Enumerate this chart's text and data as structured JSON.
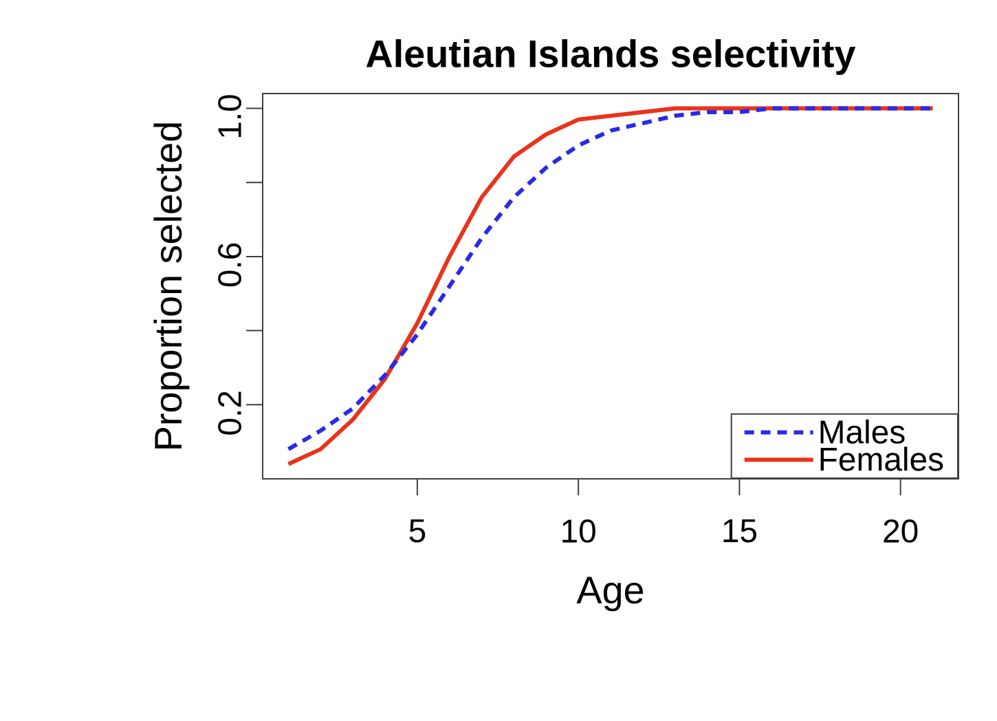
{
  "chart_data": {
    "type": "line",
    "title": "Aleutian Islands selectivity",
    "xlabel": "Age",
    "ylabel": "Proportion selected",
    "x": [
      1,
      2,
      3,
      4,
      5,
      6,
      7,
      8,
      9,
      10,
      11,
      12,
      13,
      14,
      15,
      16,
      17,
      18,
      19,
      20,
      21
    ],
    "series": [
      {
        "name": "Males",
        "color": "#2a2ae8",
        "line_style": "dashed",
        "values": [
          0.08,
          0.13,
          0.19,
          0.28,
          0.39,
          0.52,
          0.65,
          0.76,
          0.84,
          0.9,
          0.94,
          0.96,
          0.98,
          0.99,
          0.99,
          1,
          1,
          1,
          1,
          1,
          1
        ]
      },
      {
        "name": "Females",
        "color": "#e8341c",
        "line_style": "solid",
        "values": [
          0.04,
          0.08,
          0.16,
          0.27,
          0.42,
          0.6,
          0.76,
          0.87,
          0.93,
          0.97,
          0.98,
          0.99,
          1,
          1,
          1,
          1,
          1,
          1,
          1,
          1,
          1
        ]
      }
    ],
    "xlim": [
      0.2,
      21.8
    ],
    "ylim": [
      0,
      1.04
    ],
    "xticks": [
      5,
      10,
      15,
      20
    ],
    "yticks": [
      0.2,
      {
        "value": 0.4,
        "label": null
      },
      0.6,
      {
        "value": 0.8,
        "label": null
      },
      {
        "value": 1,
        "label": "1.0"
      }
    ],
    "legend": "bottom right",
    "grid": false,
    "marker": "none"
  }
}
